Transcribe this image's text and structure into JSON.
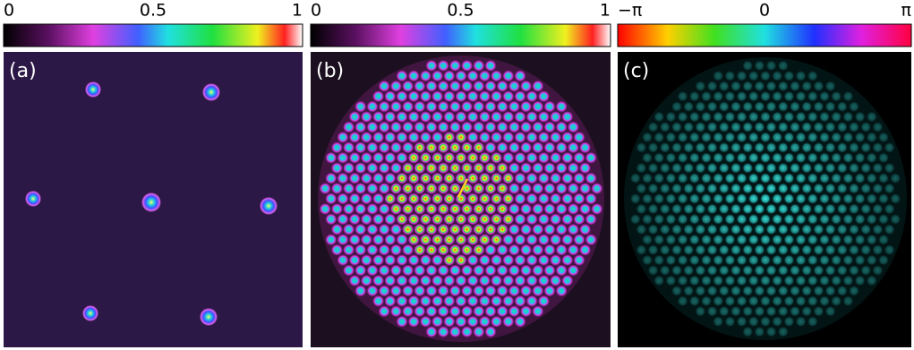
{
  "panels": [
    {
      "label": "(a)",
      "colorbar_ticks": [
        "0",
        "0.5",
        "1"
      ]
    },
    {
      "label": "(b)",
      "colorbar_ticks": [
        "0",
        "0.5",
        "1"
      ]
    },
    {
      "label": "(c)",
      "colorbar_ticks": [
        "−π",
        "0",
        "π"
      ]
    }
  ]
}
